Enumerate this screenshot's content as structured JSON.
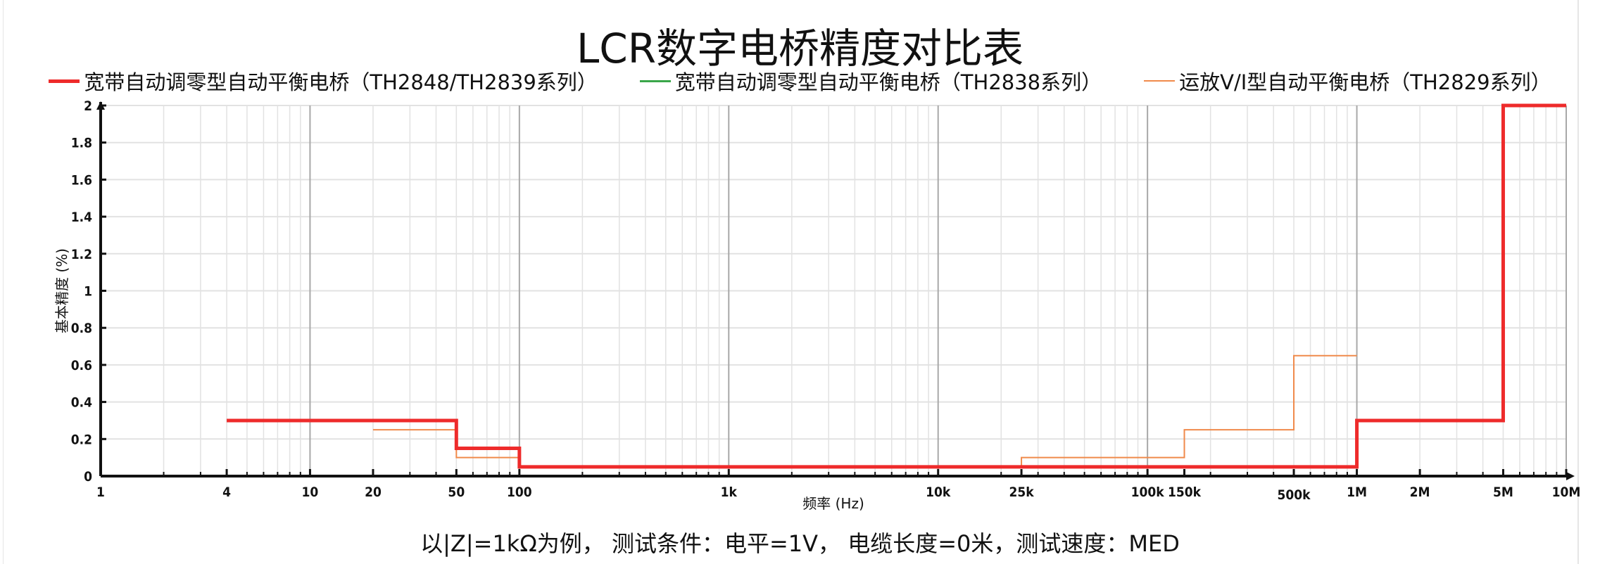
{
  "chart_data": {
    "type": "line",
    "title": "LCR数字电桥精度对比表",
    "subtitle": "以|Z|=1kΩ为例， 测试条件：电平=1V， 电缆长度=0米，测试速度：MED",
    "xlabel": "频率 (Hz)",
    "ylabel": "基本精度 (%)",
    "x_scale": "log",
    "xlim": [
      1,
      10000000
    ],
    "ylim": [
      0,
      2
    ],
    "grid": true,
    "legend_placement": "top",
    "x_ticks": [
      {
        "value": 1,
        "label": "1"
      },
      {
        "value": 4,
        "label": "4"
      },
      {
        "value": 10,
        "label": "10"
      },
      {
        "value": 20,
        "label": "20"
      },
      {
        "value": 50,
        "label": "50"
      },
      {
        "value": 100,
        "label": "100"
      },
      {
        "value": 1000,
        "label": "1k"
      },
      {
        "value": 10000,
        "label": "10k"
      },
      {
        "value": 25000,
        "label": "25k"
      },
      {
        "value": 100000,
        "label": "100k"
      },
      {
        "value": 150000,
        "label": "150k"
      },
      {
        "value": 500000,
        "label": "500k"
      },
      {
        "value": 1000000,
        "label": "1M"
      },
      {
        "value": 2000000,
        "label": "2M"
      },
      {
        "value": 5000000,
        "label": "5M"
      },
      {
        "value": 10000000,
        "label": "10M"
      }
    ],
    "y_ticks": [
      "0",
      "0.2",
      "0.4",
      "0.6",
      "0.8",
      "1",
      "1.2",
      "1.4",
      "1.6",
      "1.8",
      "2"
    ],
    "series": [
      {
        "name": "宽带自动调零型自动平衡电桥（TH2848/TH2839系列）",
        "color": "#ee2b2b",
        "style": "step",
        "x": [
          4,
          50,
          100,
          1000000,
          5000000,
          10000000
        ],
        "y": [
          0.3,
          0.15,
          0.05,
          0.3,
          2,
          2
        ]
      },
      {
        "name": "宽带自动调零型自动平衡电桥（TH2838系列）",
        "color": "#3aa64a",
        "style": "step",
        "x": [
          20,
          50,
          100,
          1000000,
          2000000
        ],
        "y": [
          0.3,
          0.15,
          0.05,
          0.3,
          0.3
        ]
      },
      {
        "name": "运放V/I型自动平衡电桥（TH2829系列）",
        "color": "#f08a4b",
        "style": "step",
        "x": [
          20,
          50,
          100,
          25000,
          150000,
          500000,
          1000000
        ],
        "y": [
          0.25,
          0.1,
          0.05,
          0.1,
          0.25,
          0.65,
          0.65
        ]
      }
    ]
  }
}
